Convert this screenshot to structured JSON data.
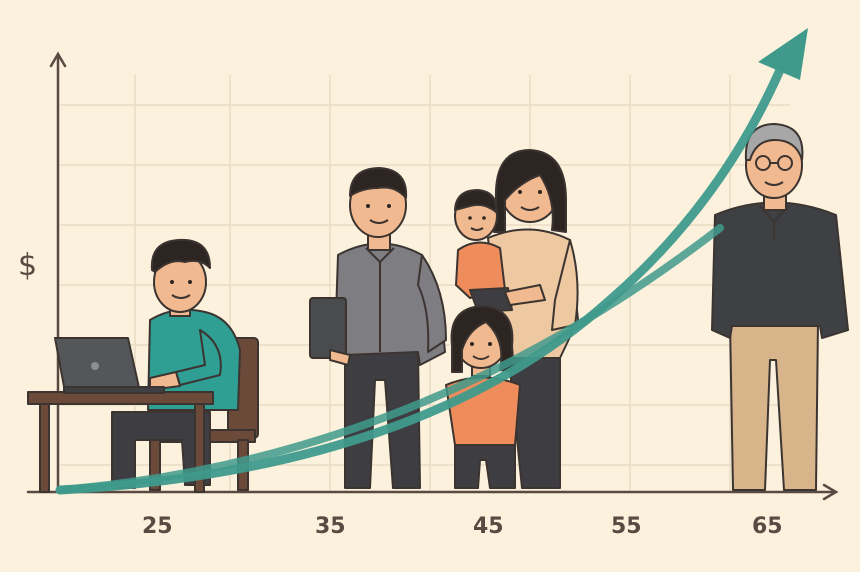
{
  "axis": {
    "y_symbol": "$",
    "x_ticks": [
      "25",
      "35",
      "45",
      "55",
      "65"
    ]
  },
  "colors": {
    "background": "#fbf1dd",
    "grid": "#eadcc4",
    "axis": "#5a4a42",
    "arrow": "#3f9a8c"
  },
  "scene": {
    "figures": [
      "young-man-at-laptop",
      "man-with-tablet",
      "mother-holding-baby",
      "young-girl",
      "older-man-with-glasses"
    ],
    "icons": [
      "laptop-icon",
      "tablet-icon",
      "growth-arrow-icon"
    ]
  }
}
